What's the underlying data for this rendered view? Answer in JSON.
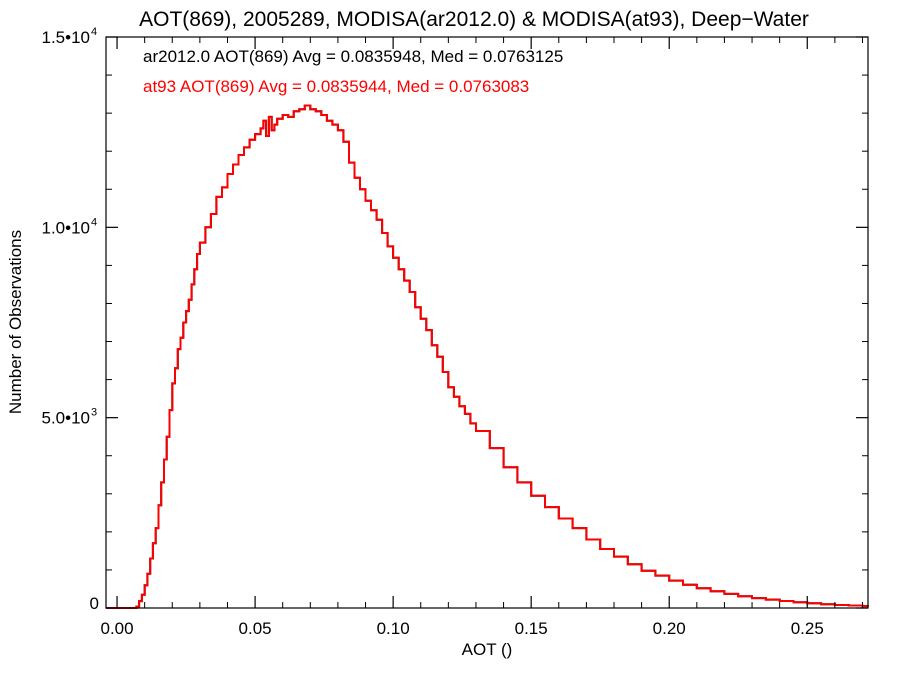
{
  "chart_data": {
    "type": "line",
    "title": "AOT(869), 2005289, MODISA(ar2012.0) & MODISA(at93), Deep−Water",
    "xlabel": "AOT ()",
    "ylabel": "Number of Observations",
    "xlim": [
      -0.004,
      0.272
    ],
    "ylim": [
      0,
      15000
    ],
    "x_ticks": [
      {
        "value": 0.0,
        "label": "0.00"
      },
      {
        "value": 0.05,
        "label": "0.05"
      },
      {
        "value": 0.1,
        "label": "0.10"
      },
      {
        "value": 0.15,
        "label": "0.15"
      },
      {
        "value": 0.2,
        "label": "0.20"
      },
      {
        "value": 0.25,
        "label": "0.25"
      }
    ],
    "y_ticks": [
      {
        "value": 0,
        "mantissa": "0",
        "exponent": ""
      },
      {
        "value": 5000,
        "mantissa": "5.0•10",
        "exponent": "3"
      },
      {
        "value": 10000,
        "mantissa": "1.0•10",
        "exponent": "4"
      },
      {
        "value": 15000,
        "mantissa": "1.5•10",
        "exponent": "4"
      }
    ],
    "grid": false,
    "step": true,
    "annotations": [
      {
        "text": "ar2012.0 AOT(869) Avg = 0.0835948, Med = 0.0763125",
        "color": "#000000"
      },
      {
        "text": "at93 AOT(869) Avg = 0.0835944, Med = 0.0763083",
        "color": "#ff0000"
      }
    ],
    "series": [
      {
        "color": "#000000",
        "x": [
          -0.004,
          0.0,
          0.002,
          0.004,
          0.005,
          0.006,
          0.007,
          0.008,
          0.009,
          0.01,
          0.011,
          0.012,
          0.013,
          0.014,
          0.015,
          0.016,
          0.017,
          0.018,
          0.019,
          0.02,
          0.021,
          0.022,
          0.023,
          0.024,
          0.025,
          0.026,
          0.027,
          0.028,
          0.029,
          0.03,
          0.032,
          0.034,
          0.036,
          0.038,
          0.04,
          0.042,
          0.044,
          0.046,
          0.048,
          0.05,
          0.052,
          0.053,
          0.054,
          0.055,
          0.056,
          0.057,
          0.058,
          0.06,
          0.062,
          0.064,
          0.066,
          0.068,
          0.07,
          0.072,
          0.074,
          0.076,
          0.078,
          0.08,
          0.082,
          0.084,
          0.086,
          0.088,
          0.09,
          0.092,
          0.094,
          0.096,
          0.098,
          0.1,
          0.102,
          0.104,
          0.106,
          0.108,
          0.11,
          0.112,
          0.114,
          0.116,
          0.118,
          0.12,
          0.122,
          0.124,
          0.126,
          0.128,
          0.13,
          0.135,
          0.14,
          0.145,
          0.15,
          0.155,
          0.16,
          0.165,
          0.17,
          0.175,
          0.18,
          0.185,
          0.19,
          0.195,
          0.2,
          0.205,
          0.21,
          0.215,
          0.22,
          0.225,
          0.23,
          0.235,
          0.24,
          0.245,
          0.25,
          0.255,
          0.26,
          0.265,
          0.27,
          0.272
        ],
        "y": [
          0,
          0,
          0,
          0,
          0,
          0,
          40,
          180,
          350,
          600,
          900,
          1300,
          1700,
          2100,
          2700,
          3300,
          3900,
          4500,
          5200,
          5900,
          6300,
          6800,
          7100,
          7500,
          7800,
          8100,
          8500,
          8900,
          9300,
          9600,
          10000,
          10350,
          10800,
          11050,
          11400,
          11650,
          11900,
          12100,
          12300,
          12450,
          12600,
          12800,
          12400,
          12900,
          12550,
          12700,
          12850,
          12950,
          12900,
          13050,
          13100,
          13200,
          13100,
          13050,
          12950,
          12800,
          12700,
          12550,
          12250,
          11700,
          11300,
          11000,
          10700,
          10450,
          10200,
          9850,
          9500,
          9200,
          8900,
          8600,
          8300,
          7900,
          7600,
          7300,
          6900,
          6600,
          6200,
          5800,
          5550,
          5300,
          5100,
          4850,
          4650,
          4200,
          3700,
          3300,
          2950,
          2650,
          2350,
          2100,
          1800,
          1550,
          1350,
          1150,
          980,
          850,
          720,
          610,
          520,
          440,
          370,
          310,
          260,
          220,
          185,
          150,
          125,
          100,
          80,
          65,
          50,
          45
        ]
      },
      {
        "color": "#ff0000",
        "x": [
          -0.004,
          0.0,
          0.002,
          0.004,
          0.005,
          0.006,
          0.007,
          0.008,
          0.009,
          0.01,
          0.011,
          0.012,
          0.013,
          0.014,
          0.015,
          0.016,
          0.017,
          0.018,
          0.019,
          0.02,
          0.021,
          0.022,
          0.023,
          0.024,
          0.025,
          0.026,
          0.027,
          0.028,
          0.029,
          0.03,
          0.032,
          0.034,
          0.036,
          0.038,
          0.04,
          0.042,
          0.044,
          0.046,
          0.048,
          0.05,
          0.052,
          0.053,
          0.054,
          0.055,
          0.056,
          0.057,
          0.058,
          0.06,
          0.062,
          0.064,
          0.066,
          0.068,
          0.07,
          0.072,
          0.074,
          0.076,
          0.078,
          0.08,
          0.082,
          0.084,
          0.086,
          0.088,
          0.09,
          0.092,
          0.094,
          0.096,
          0.098,
          0.1,
          0.102,
          0.104,
          0.106,
          0.108,
          0.11,
          0.112,
          0.114,
          0.116,
          0.118,
          0.12,
          0.122,
          0.124,
          0.126,
          0.128,
          0.13,
          0.135,
          0.14,
          0.145,
          0.15,
          0.155,
          0.16,
          0.165,
          0.17,
          0.175,
          0.18,
          0.185,
          0.19,
          0.195,
          0.2,
          0.205,
          0.21,
          0.215,
          0.22,
          0.225,
          0.23,
          0.235,
          0.24,
          0.245,
          0.25,
          0.255,
          0.26,
          0.265,
          0.27,
          0.272
        ],
        "y": [
          0,
          0,
          0,
          0,
          0,
          0,
          40,
          180,
          350,
          600,
          900,
          1300,
          1700,
          2100,
          2700,
          3300,
          3900,
          4500,
          5200,
          5900,
          6300,
          6800,
          7100,
          7500,
          7800,
          8100,
          8500,
          8900,
          9300,
          9600,
          10000,
          10350,
          10800,
          11050,
          11400,
          11650,
          11900,
          12100,
          12300,
          12450,
          12600,
          12800,
          12400,
          12900,
          12550,
          12700,
          12850,
          12950,
          12900,
          13050,
          13100,
          13200,
          13100,
          13050,
          12950,
          12800,
          12700,
          12550,
          12250,
          11700,
          11300,
          11000,
          10700,
          10450,
          10200,
          9850,
          9500,
          9200,
          8900,
          8600,
          8300,
          7900,
          7600,
          7300,
          6900,
          6600,
          6200,
          5800,
          5550,
          5300,
          5100,
          4850,
          4650,
          4200,
          3700,
          3300,
          2950,
          2650,
          2350,
          2100,
          1800,
          1550,
          1350,
          1150,
          980,
          850,
          720,
          610,
          520,
          440,
          370,
          310,
          260,
          220,
          185,
          150,
          125,
          100,
          80,
          65,
          50,
          45
        ]
      }
    ]
  }
}
